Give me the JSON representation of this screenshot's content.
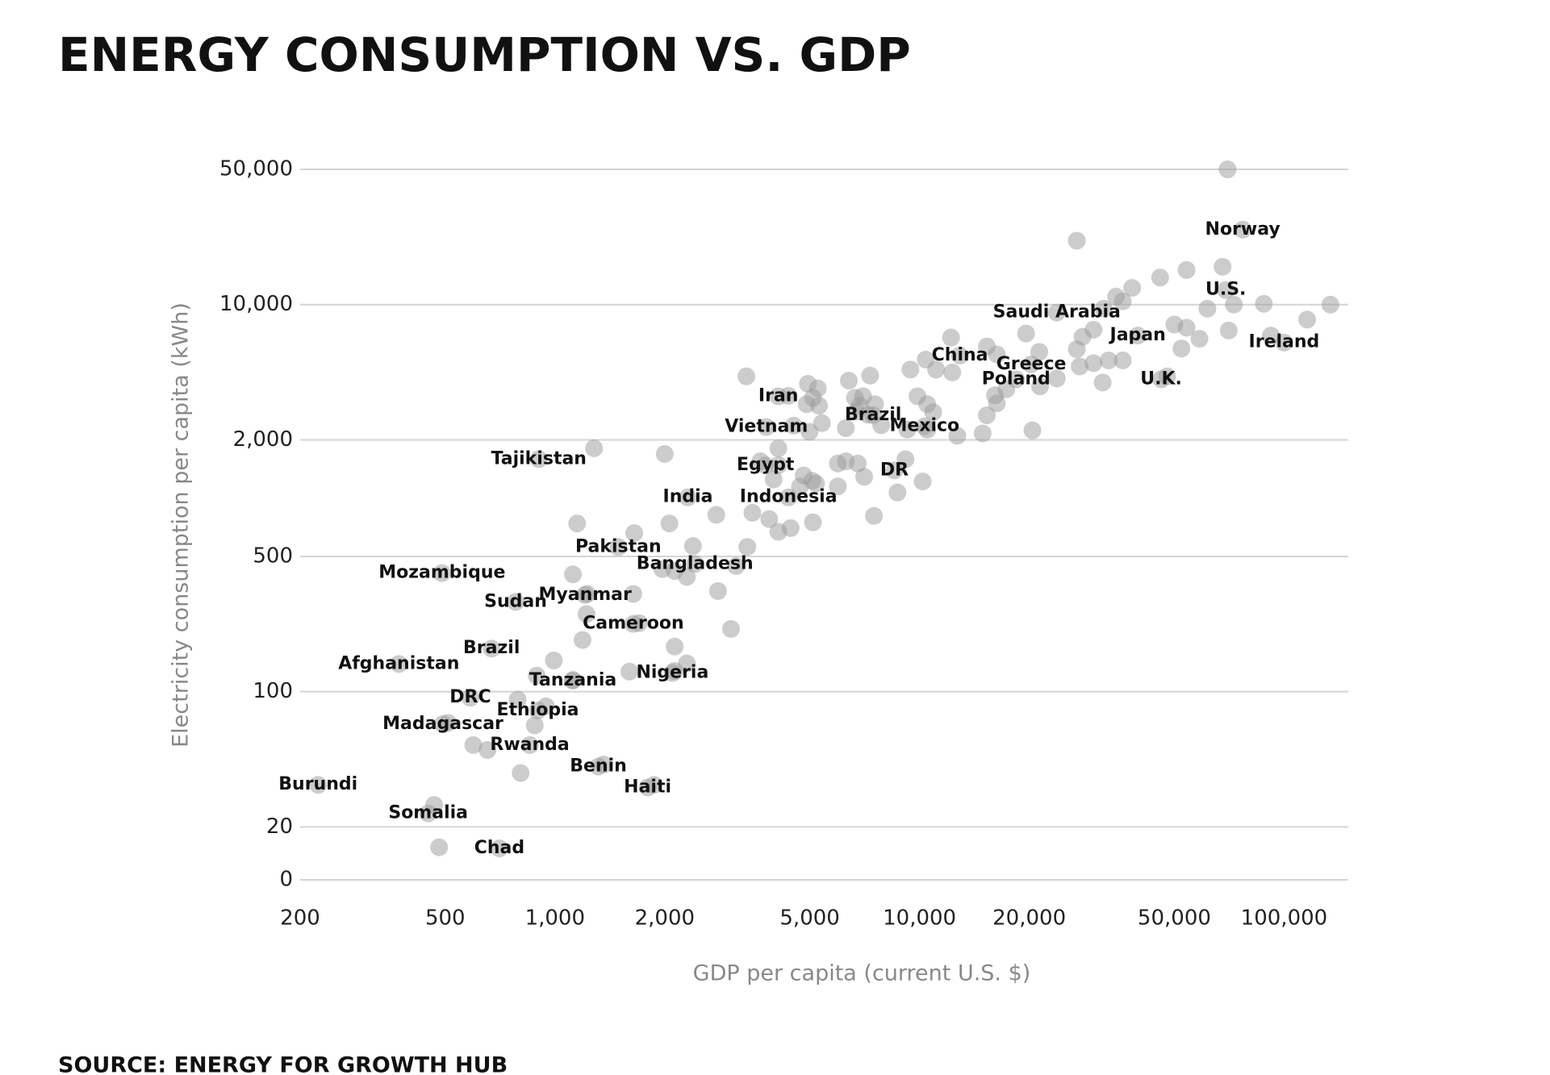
{
  "chart_data": {
    "type": "scatter",
    "title": "ENERGY CONSUMPTION VS. GDP",
    "source": "SOURCE: ENERGY FOR GROWTH HUB",
    "x_label": "GDP per capita (current U.S. $)",
    "y_label": "Electricity consumption per capita (kWh)",
    "x_log": true,
    "y_log": true,
    "grid": true,
    "color": "#9a9a9a",
    "xlim": [
      200,
      150000
    ],
    "xticks": [
      200,
      500,
      {
        "value": 1000,
        "label": "1,000"
      },
      {
        "value": 2000,
        "label": "2,000"
      },
      {
        "value": 5000,
        "label": "5,000"
      },
      {
        "value": 10000,
        "label": "10,000"
      },
      {
        "value": 20000,
        "label": "20,000"
      },
      {
        "value": 50000,
        "label": "50,000"
      },
      {
        "value": 100000,
        "label": "100,000"
      }
    ],
    "ylim": [
      10.66,
      60000
    ],
    "yticks": [
      0,
      20,
      100,
      500,
      {
        "value": 2000,
        "label": "2,000"
      },
      {
        "value": 10000,
        "label": "10,000"
      },
      {
        "value": 50000,
        "label": "50,000"
      }
    ],
    "x": [
      77000,
      69200,
      23800,
      39700,
      100000,
      12900,
      20250,
      18400,
      46000,
      4100,
      7460,
      10320,
      3800,
      3780,
      8530,
      903,
      2315,
      4370,
      1492,
      2420,
      490,
      1210,
      780,
      1640,
      670,
      373,
      2100,
      1120,
      586,
      897,
      493,
      853,
      1315,
      1795,
      224,
      449,
      704,
      70000,
      27000,
      67800,
      54000,
      45700,
      38300,
      34600,
      36100,
      32000,
      61600,
      72800,
      88000,
      134000,
      115700,
      50000,
      54000,
      70500,
      92000,
      58600,
      52300,
      30000,
      28000,
      19600,
      12200,
      15300,
      16300,
      21300,
      27000,
      33000,
      36100,
      30000,
      27500,
      23800,
      21400,
      31800,
      47800,
      10400,
      12300,
      11100,
      9440,
      17300,
      16100,
      16300,
      15300,
      14900,
      12700,
      20400,
      9870,
      10500,
      10900,
      10500,
      9260,
      7320,
      6400,
      4940,
      5260,
      4370,
      5100,
      4900,
      5300,
      6650,
      7000,
      7550,
      6850,
      6700,
      7220,
      7850,
      6280,
      5400,
      4520,
      4990,
      3350,
      4100,
      3660,
      4100,
      3980,
      4810,
      5080,
      5200,
      4700,
      5970,
      5970,
      6280,
      6770,
      7050,
      9150,
      10200,
      8700,
      7500,
      5100,
      4430,
      4100,
      3870,
      3480,
      3370,
      2770,
      2060,
      2000,
      1280,
      1150,
      1650,
      2390,
      3140,
      2300,
      1970,
      2130,
      1120,
      1640,
      1225,
      2800,
      1220,
      1700,
      3040,
      1190,
      2130,
      993,
      2300,
      2130,
      1600,
      891,
      1120,
      790,
      944,
      880,
      597,
      653,
      509,
      805,
      1360,
      1870,
      466,
      481
    ],
    "values": [
      24400,
      11900,
      9100,
      6920,
      6370,
      5460,
      4910,
      4110,
      4110,
      3360,
      2680,
      2350,
      2330,
      1480,
      1390,
      1590,
      1010,
      1010,
      559,
      457,
      410,
      316,
      291,
      224,
      167,
      139,
      125,
      114,
      93,
      80,
      68,
      53,
      41,
      32,
      33,
      23.5,
      15.5,
      50000,
      21400,
      15700,
      15100,
      13800,
      12200,
      11000,
      10400,
      9530,
      9530,
      10000,
      10100,
      10000,
      8370,
      7890,
      7600,
      7350,
      6920,
      6660,
      5930,
      7420,
      6820,
      7090,
      6760,
      6080,
      5530,
      5700,
      5880,
      5150,
      5150,
      4980,
      4790,
      4150,
      3780,
      3960,
      4260,
      5200,
      4460,
      4620,
      4620,
      3650,
      3400,
      3090,
      2680,
      2160,
      2100,
      2240,
      3360,
      3060,
      2780,
      2260,
      2260,
      4300,
      4050,
      3900,
      3690,
      3380,
      3300,
      3060,
      3000,
      3300,
      3360,
      3060,
      3000,
      2800,
      2700,
      2380,
      2300,
      2440,
      2370,
      2200,
      4260,
      1810,
      1550,
      1480,
      1250,
      1310,
      1230,
      1190,
      1150,
      1150,
      1510,
      1550,
      1510,
      1290,
      1590,
      1220,
      1070,
      810,
      750,
      700,
      670,
      780,
      840,
      560,
      820,
      740,
      1690,
      1810,
      740,
      660,
      566,
      446,
      392,
      430,
      420,
      404,
      320,
      320,
      331,
      252,
      226,
      211,
      185,
      171,
      145,
      140,
      128,
      127,
      121,
      115,
      91,
      84,
      67,
      53,
      50,
      69,
      38,
      42,
      33,
      26,
      15.7
    ],
    "labels": [
      "Norway",
      "U.S.",
      "Saudi Arabia",
      "Japan",
      "Ireland",
      "China",
      "Greece",
      "Poland",
      "U.K.",
      "Iran",
      "Brazil",
      "Mexico",
      "Vietnam",
      "Egypt",
      "DR",
      "Tajikistan",
      "India",
      "Indonesia",
      "Pakistan",
      "Bangladesh",
      "Mozambique",
      "Myanmar",
      "Sudan",
      "Cameroon",
      "Brazil",
      "Afghanistan",
      "Nigeria",
      "Tanzania",
      "DRC",
      "Ethiopia",
      "Madagascar",
      "Rwanda",
      "Benin",
      "Haiti",
      "Burundi",
      "Somalia",
      "Chad",
      null,
      null,
      null,
      null,
      null,
      null,
      null,
      null,
      null,
      null,
      null,
      null,
      null,
      null,
      null,
      null,
      null,
      null,
      null,
      null,
      null,
      null,
      null,
      null,
      null,
      null,
      null,
      null,
      null,
      null,
      null,
      null,
      null,
      null,
      null,
      null,
      null,
      null,
      null,
      null,
      null,
      null,
      null,
      null,
      null,
      null,
      null,
      null,
      null,
      null,
      null,
      null,
      null,
      null,
      null,
      null,
      null,
      null,
      null,
      null,
      null,
      null,
      null,
      null,
      null,
      null,
      null,
      null,
      null,
      null,
      null,
      null,
      null,
      null,
      null,
      null,
      null,
      null,
      null,
      null,
      null,
      null,
      null,
      null,
      null,
      null,
      null,
      null,
      null,
      null,
      null,
      null,
      null,
      null,
      null,
      null,
      null,
      null,
      null,
      null,
      null,
      null,
      null,
      null,
      null,
      null,
      null,
      null,
      null,
      null,
      null,
      null,
      null,
      null,
      null,
      null,
      null,
      null,
      null,
      null,
      null,
      null,
      null,
      null,
      null,
      null,
      null,
      null,
      null,
      null,
      null,
      null
    ]
  }
}
